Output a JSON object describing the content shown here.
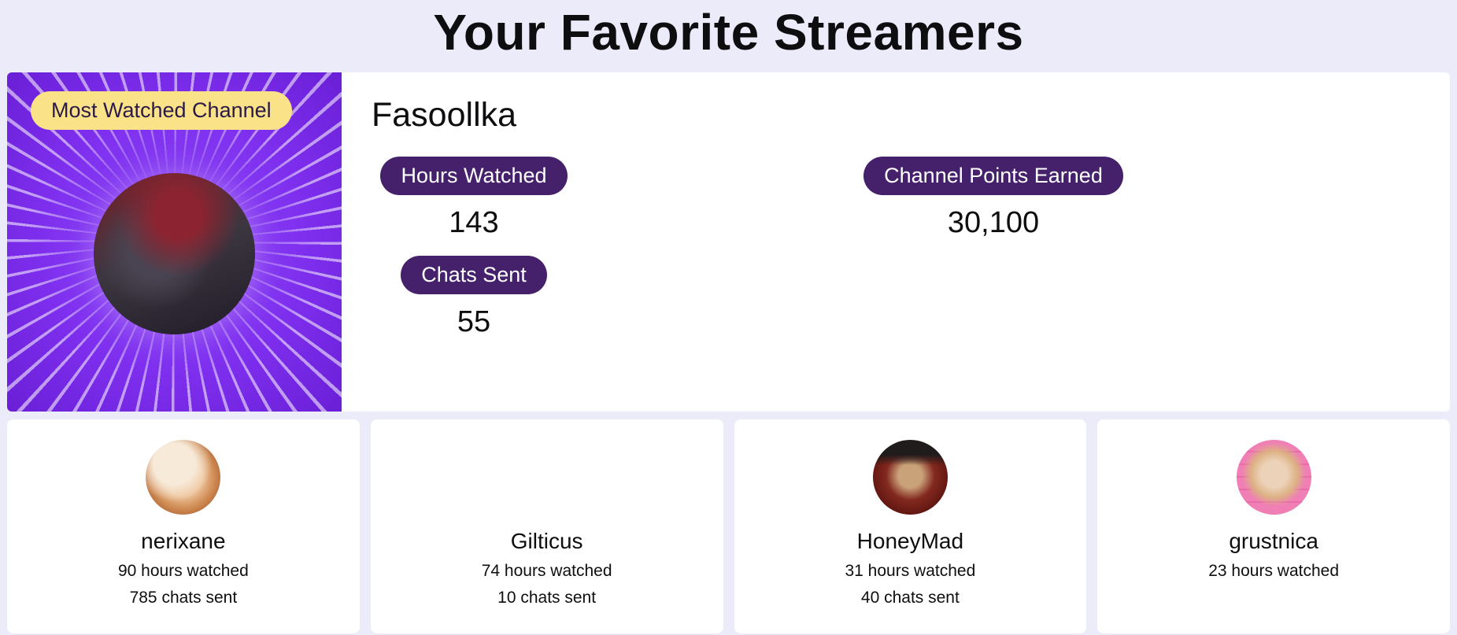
{
  "page": {
    "title": "Your Favorite Streamers"
  },
  "featured": {
    "badge": "Most Watched Channel",
    "name": "Fasoollka",
    "stats": {
      "hours": {
        "label": "Hours Watched",
        "value": "143"
      },
      "points": {
        "label": "Channel Points Earned",
        "value": "30,100"
      },
      "chats": {
        "label": "Chats Sent",
        "value": "55"
      }
    }
  },
  "streamers": [
    {
      "name": "nerixane",
      "hours_watched": "90 hours watched",
      "chats_sent": "785 chats sent"
    },
    {
      "name": "Gilticus",
      "hours_watched": "74 hours watched",
      "chats_sent": "10 chats sent"
    },
    {
      "name": "HoneyMad",
      "hours_watched": "31 hours watched",
      "chats_sent": "40 chats sent"
    },
    {
      "name": "grustnica",
      "hours_watched": "23 hours watched"
    }
  ],
  "colors": {
    "background": "#ecebfa",
    "card": "#ffffff",
    "accent_purple": "#7e2fee",
    "pill_purple": "#45216b",
    "badge_yellow": "#f9e288",
    "badge_text": "#2b1a47",
    "text": "#0e0e10"
  }
}
